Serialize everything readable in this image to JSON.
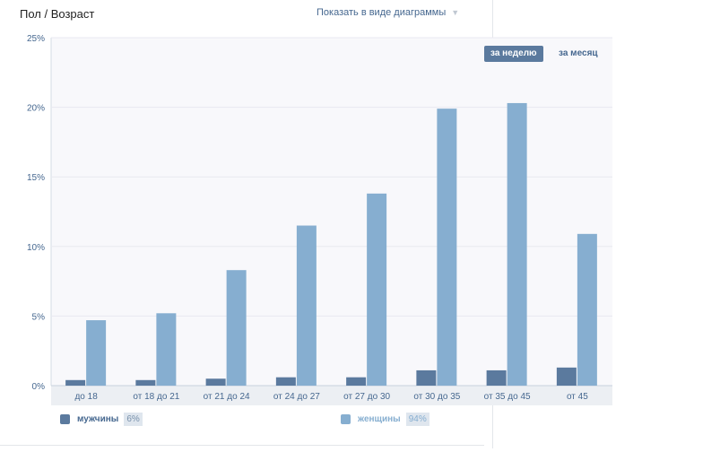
{
  "header": {
    "title": "Пол / Возраст",
    "view_toggle": "Показать в виде диаграммы",
    "view_icon": "chevron-down-icon"
  },
  "period": {
    "week": "за неделю",
    "month": "за месяц",
    "active": "week"
  },
  "legend": [
    {
      "label": "мужчины",
      "pct": "6%",
      "color": "#5b7a9e"
    },
    {
      "label": "женщины",
      "pct": "94%",
      "color": "#86aed0"
    }
  ],
  "chart_data": {
    "type": "bar",
    "categories": [
      "до 18",
      "от 18 до 21",
      "от 21 до 24",
      "от 24 до 27",
      "от 27 до 30",
      "от 30 до 35",
      "от 35 до 45",
      "от 45"
    ],
    "series": [
      {
        "name": "мужчины",
        "values": [
          0.4,
          0.4,
          0.5,
          0.6,
          0.6,
          1.1,
          1.1,
          1.3
        ],
        "color": "#5b7a9e"
      },
      {
        "name": "женщины",
        "values": [
          4.7,
          5.2,
          8.3,
          11.5,
          13.8,
          19.9,
          20.3,
          10.9
        ],
        "color": "#86aed0"
      }
    ],
    "yticks": [
      "0%",
      "5%",
      "10%",
      "15%",
      "20%",
      "25%"
    ],
    "ylim": [
      0,
      25
    ],
    "grid": true,
    "legend": "bottom"
  }
}
